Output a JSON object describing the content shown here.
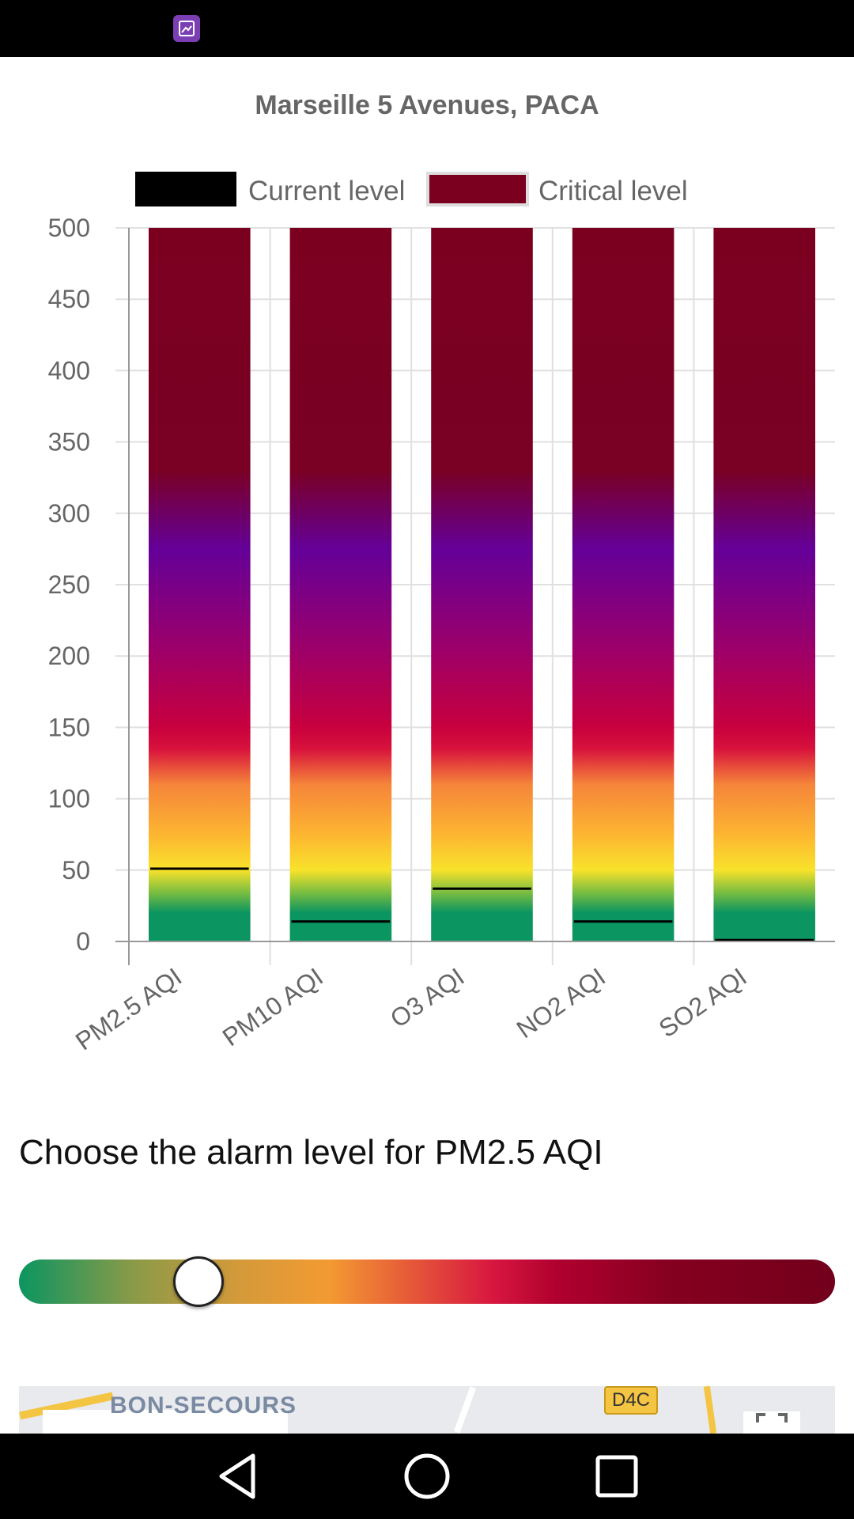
{
  "status_bar": {
    "icon": "gallery-notification-icon"
  },
  "chart_data": {
    "type": "bar",
    "title": "Marseille 5 Avenues, PACA",
    "categories": [
      "PM2.5 AQI",
      "PM10 AQI",
      "O3 AQI",
      "NO2 AQI",
      "SO2 AQI"
    ],
    "series": [
      {
        "name": "Current level",
        "values": [
          51,
          14,
          37,
          14,
          1
        ],
        "color": "#000000"
      },
      {
        "name": "Critical level",
        "values": [
          500,
          500,
          500,
          500,
          500
        ],
        "color": "#7b0020"
      }
    ],
    "ylim": [
      0,
      500
    ],
    "yticks": [
      0,
      50,
      100,
      150,
      200,
      250,
      300,
      350,
      400,
      450,
      500
    ],
    "grid": true,
    "legend": "top",
    "xlabel": "",
    "ylabel": ""
  },
  "alarm": {
    "title": "Choose the alarm level for PM2.5 AQI",
    "slider_value": 51,
    "slider_max": 500
  },
  "map": {
    "area_label": "BON-SECOURS",
    "road_label": "D4C"
  },
  "nav": {
    "back": "back-icon",
    "home": "home-icon",
    "recents": "recents-icon"
  }
}
